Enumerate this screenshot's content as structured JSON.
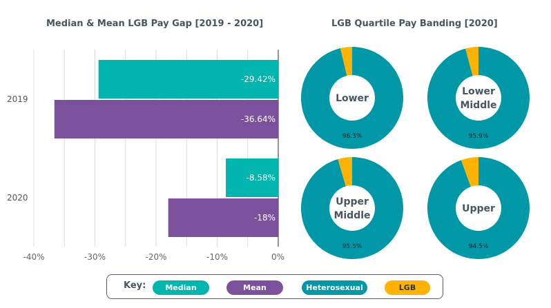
{
  "chart_data": [
    {
      "type": "bar",
      "orientation": "horizontal",
      "title": "Median & Mean LGB Pay Gap [2019 - 2020]",
      "categories": [
        "2019",
        "2020"
      ],
      "series": [
        {
          "name": "Median",
          "color": "#00b5ad",
          "values": [
            -29.42,
            -8.58
          ],
          "labels": [
            "-29.42%",
            "-8.58%"
          ]
        },
        {
          "name": "Mean",
          "color": "#7b519d",
          "values": [
            -36.64,
            -18
          ],
          "labels": [
            "-36.64%",
            "-18%"
          ]
        }
      ],
      "xlim": [
        -40,
        0
      ],
      "xticks": [
        -40,
        -30,
        -20,
        -10,
        0
      ],
      "xtick_labels": [
        "-40%",
        "-30%",
        "-20%",
        "-10%",
        "0%"
      ],
      "minor_gridlines": [
        -35,
        -25,
        -15,
        -5
      ],
      "grid": true,
      "xlabel": "",
      "ylabel": ""
    },
    {
      "type": "pie",
      "variant": "donut",
      "title": "LGB Quartile Pay Banding [2020]",
      "charts": [
        {
          "name": "Lower",
          "label_lines": [
            "Lower"
          ],
          "slices": [
            {
              "name": "Heterosexual",
              "value": 96.3
            },
            {
              "name": "LGB",
              "value": 3.7
            }
          ],
          "value_label": "96.3%"
        },
        {
          "name": "Lower Middle",
          "label_lines": [
            "Lower",
            "Middle"
          ],
          "slices": [
            {
              "name": "Heterosexual",
              "value": 95.9
            },
            {
              "name": "LGB",
              "value": 4.1
            }
          ],
          "value_label": "95.9%"
        },
        {
          "name": "Upper Middle",
          "label_lines": [
            "Upper",
            "Middle"
          ],
          "slices": [
            {
              "name": "Heterosexual",
              "value": 95.5
            },
            {
              "name": "LGB",
              "value": 4.5
            }
          ],
          "value_label": "95.5%"
        },
        {
          "name": "Upper",
          "label_lines": [
            "Upper"
          ],
          "slices": [
            {
              "name": "Heterosexual",
              "value": 94.5
            },
            {
              "name": "LGB",
              "value": 5.5
            }
          ],
          "value_label": "94.5%"
        }
      ],
      "colors": {
        "Heterosexual": "#0097a7",
        "LGB": "#ffb300"
      }
    }
  ],
  "key": {
    "label": "Key:",
    "items": [
      {
        "name": "Median",
        "color": "#00b5ad",
        "text_color": "#ffffff"
      },
      {
        "name": "Mean",
        "color": "#7b519d",
        "text_color": "#ffffff"
      },
      {
        "name": "Heterosexual",
        "color": "#0097a7",
        "text_color": "#ffffff"
      },
      {
        "name": "LGB",
        "color": "#ffb300",
        "text_color": "#333333"
      }
    ]
  }
}
